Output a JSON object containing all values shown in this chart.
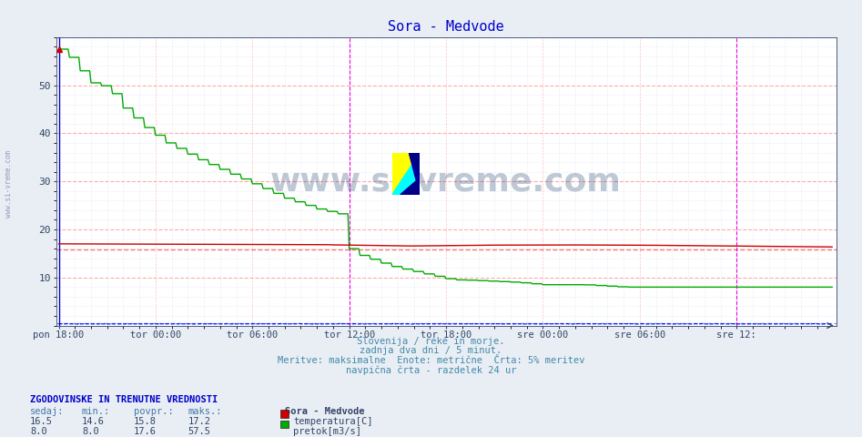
{
  "title": "Sora - Medvode",
  "title_color": "#0000cc",
  "bg_color": "#e8eef4",
  "plot_bg_color": "#ffffff",
  "grid_minor_color": "#ccddee",
  "grid_major_color": "#ffcccc",
  "ylabel": "",
  "xlabel": "",
  "ylim": [
    0,
    60
  ],
  "yticks": [
    10,
    20,
    30,
    40,
    50
  ],
  "n_points": 576,
  "temp_color": "#cc0000",
  "flow_color": "#00aa00",
  "height_color": "#0000ff",
  "temp_avg": 15.8,
  "temp_avg_color": "#ff6666",
  "height_avg": 0.5,
  "height_avg_color": "#6699ff",
  "xtick_labels": [
    "pon 18:00",
    "tor 00:00",
    "tor 06:00",
    "tor 12:00",
    "tor 18:00",
    "sre 00:00",
    "sre 06:00",
    "sre 12:"
  ],
  "xtick_positions": [
    0,
    72,
    144,
    216,
    288,
    360,
    432,
    504
  ],
  "vline_positions": [
    216,
    504
  ],
  "vline_color": "#ee00ee",
  "footer_lines": [
    "Slovenija / reke in morje.",
    "zadnja dva dni / 5 minut.",
    "Meritve: maksimalne  Enote: metrične  Črta: 5% meritev",
    "navpična črta - razdelek 24 ur"
  ],
  "footer_color": "#4488aa",
  "legend_title": "Sora - Medvode",
  "legend_entries": [
    "temperatura[C]",
    "pretok[m3/s]"
  ],
  "legend_colors": [
    "#cc0000",
    "#00aa00"
  ],
  "table_header": "ZGODOVINSKE IN TRENUTNE VREDNOSTI",
  "table_cols": [
    "sedaj:",
    "min.:",
    "povpr.:",
    "maks.:"
  ],
  "table_data": [
    [
      16.5,
      14.6,
      15.8,
      17.2
    ],
    [
      8.0,
      8.0,
      17.6,
      57.5
    ]
  ],
  "watermark": "www.si-vreme.com",
  "watermark_color": "#1a3a6a",
  "left_text": "www.si-vreme.com",
  "left_text_color": "#9999bb"
}
